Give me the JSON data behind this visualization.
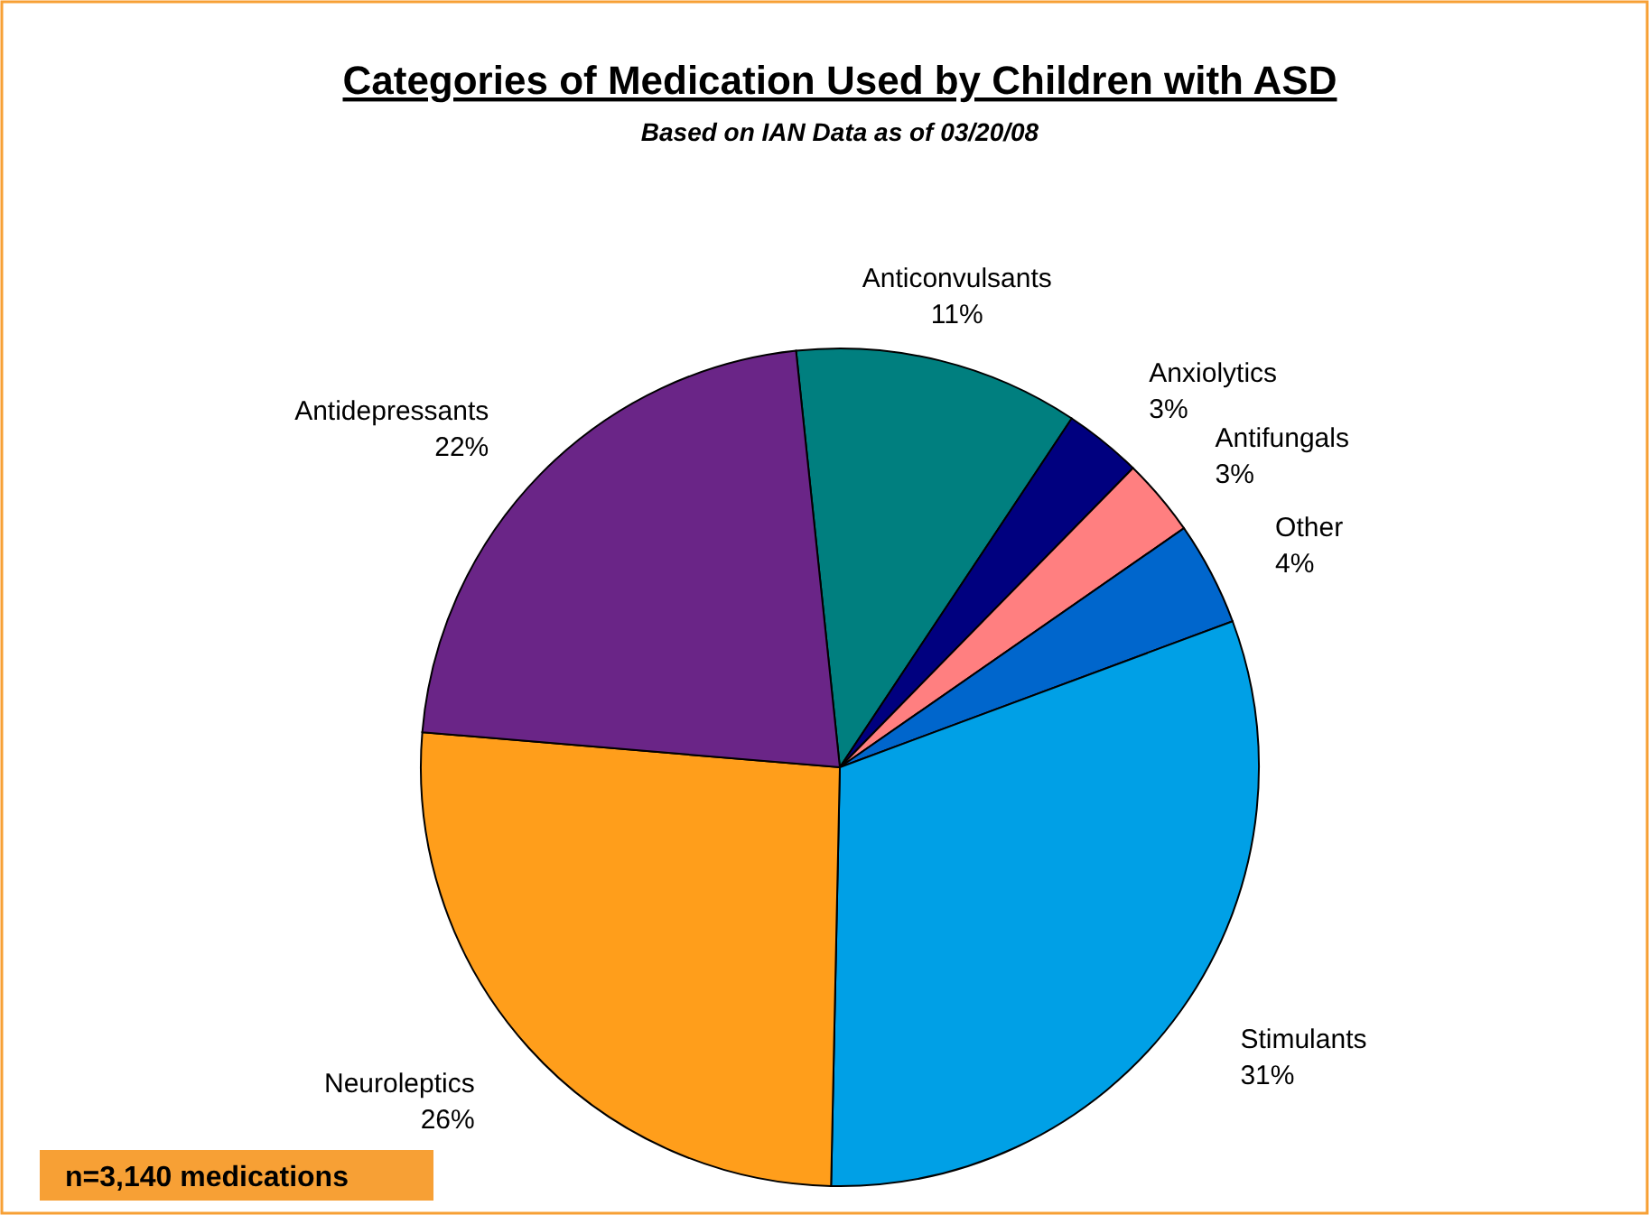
{
  "chart_data": {
    "type": "pie",
    "title": "Categories of Medication Used by Children with ASD",
    "subtitle": "Based on IAN Data as of 03/20/08",
    "categories": [
      "Anticonvulsants",
      "Anxiolytics",
      "Antifungals",
      "Other",
      "Stimulants",
      "Neuroleptics",
      "Antidepressants"
    ],
    "values": [
      11,
      3,
      3,
      4,
      31,
      26,
      22
    ],
    "value_labels": [
      "11%",
      "3%",
      "3%",
      "4%",
      "31%",
      "26%",
      "22%"
    ],
    "colors": [
      "#007f7f",
      "#00007f",
      "#ff7f80",
      "#0066cc",
      "#00a0e6",
      "#ff9e1b",
      "#6a2587"
    ],
    "annotations": [
      "n=3,140 medications"
    ]
  }
}
